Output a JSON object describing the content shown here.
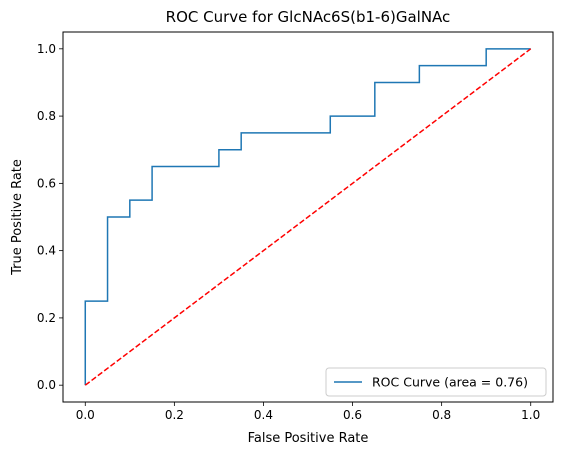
{
  "chart_data": {
    "type": "line",
    "title": "ROC Curve for GlcNAc6S(b1-6)GalNAc",
    "xlabel": "False Positive Rate",
    "ylabel": "True Positive Rate",
    "xlim": [
      -0.05,
      1.05
    ],
    "ylim": [
      -0.05,
      1.05
    ],
    "xticks": [
      0.0,
      0.2,
      0.4,
      0.6,
      0.8,
      1.0
    ],
    "yticks": [
      0.0,
      0.2,
      0.4,
      0.6,
      0.8,
      1.0
    ],
    "xtick_labels": [
      "0.0",
      "0.2",
      "0.4",
      "0.6",
      "0.8",
      "1.0"
    ],
    "ytick_labels": [
      "0.0",
      "0.2",
      "0.4",
      "0.6",
      "0.8",
      "1.0"
    ],
    "grid": false,
    "legend_position": "lower-right",
    "series": [
      {
        "name": "ROC Curve (area = 0.76)",
        "color": "#1f77b4",
        "style": "solid",
        "x": [
          0.0,
          0.0,
          0.05,
          0.05,
          0.1,
          0.1,
          0.15,
          0.15,
          0.3,
          0.3,
          0.35,
          0.35,
          0.55,
          0.55,
          0.65,
          0.65,
          0.75,
          0.75,
          0.9,
          0.9,
          1.0
        ],
        "y": [
          0.0,
          0.25,
          0.25,
          0.5,
          0.5,
          0.55,
          0.55,
          0.65,
          0.65,
          0.7,
          0.7,
          0.75,
          0.75,
          0.8,
          0.8,
          0.9,
          0.9,
          0.95,
          0.95,
          1.0,
          1.0
        ]
      },
      {
        "color": "#ff0000",
        "style": "dashed",
        "x": [
          0.0,
          1.0
        ],
        "y": [
          0.0,
          1.0
        ]
      }
    ]
  }
}
